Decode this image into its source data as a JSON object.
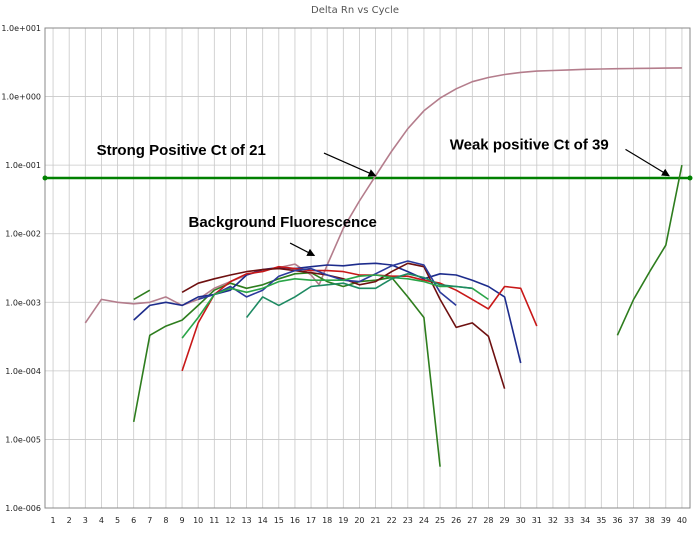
{
  "chart_data": {
    "type": "line",
    "title": "Delta Rn vs Cycle",
    "xlabel": "",
    "ylabel": "",
    "y_scale": "log",
    "ylim": [
      1e-06,
      10
    ],
    "xlim": [
      0.5,
      40.5
    ],
    "grid": true,
    "legend": "none",
    "x_ticks": [
      1,
      2,
      3,
      4,
      5,
      6,
      7,
      8,
      9,
      10,
      11,
      12,
      13,
      14,
      15,
      16,
      17,
      18,
      19,
      20,
      21,
      22,
      23,
      24,
      25,
      26,
      27,
      28,
      29,
      30,
      31,
      32,
      33,
      34,
      35,
      36,
      37,
      38,
      39,
      40
    ],
    "y_ticks": [
      {
        "value": 10,
        "label": "1.0e+001"
      },
      {
        "value": 1,
        "label": "1.0e+000"
      },
      {
        "value": 0.1,
        "label": "1.0e-001"
      },
      {
        "value": 0.01,
        "label": "1.0e-002"
      },
      {
        "value": 0.001,
        "label": "1.0e-003"
      },
      {
        "value": 0.0001,
        "label": "1.0e-004"
      },
      {
        "value": 1e-05,
        "label": "1.0e-005"
      },
      {
        "value": 1e-06,
        "label": "1.0e-006"
      }
    ],
    "threshold": {
      "value": 0.065,
      "color": "#008000"
    },
    "annotations": [
      {
        "text": "Strong Positive Ct of 21",
        "text_at": [
          3.7,
          0.14
        ],
        "arrow_from": [
          17.8,
          0.15
        ],
        "arrow_to": [
          21,
          0.07
        ]
      },
      {
        "text": "Weak positive Ct of 39",
        "text_at": [
          25.6,
          0.17
        ],
        "arrow_from": [
          36.5,
          0.17
        ],
        "arrow_to": [
          39.2,
          0.07
        ]
      },
      {
        "text": "Background  Fluorescence",
        "text_at": [
          9.4,
          0.0125
        ],
        "arrow_from": [
          15.7,
          0.0073
        ],
        "arrow_to": [
          17.2,
          0.0048
        ]
      }
    ],
    "series": [
      {
        "color": "#b47d8c",
        "width": 1.6,
        "x": [
          3,
          4,
          5,
          6,
          7,
          8,
          9,
          10,
          11,
          12,
          13,
          14,
          15,
          16,
          17,
          17.5,
          18,
          19,
          20,
          21,
          22,
          23,
          24,
          25,
          26,
          27,
          28,
          29,
          30,
          31,
          32,
          33,
          34,
          35,
          36,
          37,
          38,
          39,
          40
        ],
        "y": [
          0.0005,
          0.0011,
          0.001,
          0.00095,
          0.001,
          0.0012,
          0.0009,
          0.0011,
          0.0016,
          0.002,
          0.0025,
          0.0029,
          0.0032,
          0.0036,
          0.0025,
          0.0018,
          0.0035,
          0.012,
          0.03,
          0.07,
          0.16,
          0.34,
          0.62,
          0.95,
          1.3,
          1.65,
          1.9,
          2.1,
          2.25,
          2.35,
          2.4,
          2.45,
          2.5,
          2.52,
          2.55,
          2.57,
          2.58,
          2.6,
          2.62
        ]
      },
      {
        "color": "#2e7d1e",
        "width": 1.6,
        "x": [
          36,
          37,
          38,
          39,
          40
        ],
        "y": [
          0.00033,
          0.0011,
          0.0028,
          0.0068,
          0.1
        ]
      },
      {
        "color": "#2e7d1e",
        "width": 1.6,
        "x": [
          6,
          7
        ],
        "y": [
          0.0011,
          0.0015
        ]
      },
      {
        "color": "#2e7d1e",
        "width": 1.6,
        "x": [
          6,
          7,
          8,
          9,
          10,
          11,
          12,
          13,
          14,
          15,
          16,
          17,
          18,
          19,
          20,
          21,
          22,
          23,
          24,
          25
        ],
        "y": [
          1.8e-05,
          0.00033,
          0.00045,
          0.00055,
          0.0009,
          0.0015,
          0.0019,
          0.0016,
          0.0018,
          0.0022,
          0.0026,
          0.0027,
          0.002,
          0.0017,
          0.002,
          0.0021,
          0.0023,
          0.0012,
          0.0006,
          4e-06
        ]
      },
      {
        "color": "#1d2c8c",
        "width": 1.6,
        "x": [
          6,
          7,
          8,
          9,
          10,
          11,
          12,
          13,
          14,
          15,
          16,
          17,
          18,
          19,
          20,
          21,
          22,
          23,
          24,
          25,
          26,
          27,
          28,
          29,
          30
        ],
        "y": [
          0.00055,
          0.0009,
          0.001,
          0.0009,
          0.0012,
          0.0013,
          0.0015,
          0.0025,
          0.003,
          0.0032,
          0.0031,
          0.0033,
          0.0035,
          0.0034,
          0.0036,
          0.0037,
          0.0035,
          0.0028,
          0.0022,
          0.0026,
          0.0025,
          0.0021,
          0.0017,
          0.0012,
          0.00013
        ]
      },
      {
        "color": "#c81818",
        "width": 1.6,
        "x": [
          9,
          10,
          11,
          12,
          13,
          14,
          15,
          16,
          17,
          18,
          19,
          20,
          21,
          22,
          23,
          24,
          25,
          26,
          27,
          28,
          29,
          30,
          31
        ],
        "y": [
          0.0001,
          0.0005,
          0.0013,
          0.002,
          0.0026,
          0.0028,
          0.0033,
          0.0031,
          0.0029,
          0.0029,
          0.0028,
          0.0025,
          0.0025,
          0.0024,
          0.0024,
          0.0021,
          0.0019,
          0.0015,
          0.0011,
          0.0008,
          0.0017,
          0.0016,
          0.00045
        ]
      },
      {
        "color": "#6e1010",
        "width": 1.6,
        "x": [
          9,
          10,
          11,
          12,
          13,
          14,
          15,
          16,
          17,
          18,
          19,
          20,
          21,
          22,
          23,
          24,
          25,
          26,
          27,
          28,
          29
        ],
        "y": [
          0.0014,
          0.0019,
          0.0022,
          0.0025,
          0.0028,
          0.003,
          0.0031,
          0.0029,
          0.0027,
          0.0025,
          0.0022,
          0.0018,
          0.002,
          0.0028,
          0.0037,
          0.0033,
          0.0011,
          0.00043,
          0.0005,
          0.00032,
          5.5e-05
        ]
      },
      {
        "color": "#2b3a9c",
        "width": 1.6,
        "x": [
          10,
          11,
          12,
          13,
          14,
          15,
          16,
          17,
          18,
          19,
          20,
          21,
          22,
          23,
          24,
          25,
          26
        ],
        "y": [
          0.0011,
          0.0013,
          0.0017,
          0.0012,
          0.0015,
          0.0024,
          0.0029,
          0.0031,
          0.0025,
          0.0021,
          0.002,
          0.0026,
          0.0034,
          0.004,
          0.0035,
          0.0014,
          0.0009
        ]
      },
      {
        "color": "#2aa548",
        "width": 1.6,
        "x": [
          9,
          10,
          11,
          12,
          13,
          14,
          15,
          16,
          17,
          18,
          19,
          20,
          21,
          22,
          23,
          24,
          25,
          26,
          27,
          28
        ],
        "y": [
          0.0003,
          0.0006,
          0.0013,
          0.0016,
          0.0014,
          0.0016,
          0.002,
          0.0022,
          0.0021,
          0.0021,
          0.0021,
          0.0024,
          0.0025,
          0.0023,
          0.0022,
          0.002,
          0.0017,
          0.0017,
          0.0016,
          0.0011
        ]
      },
      {
        "color": "#1e8a62",
        "width": 1.6,
        "x": [
          13,
          14,
          15,
          16,
          17,
          18,
          19,
          20,
          21,
          22,
          23,
          24,
          25,
          26,
          27
        ],
        "y": [
          0.0006,
          0.0012,
          0.0009,
          0.0012,
          0.0017,
          0.0018,
          0.0019,
          0.0016,
          0.0016,
          0.0022,
          0.0026,
          0.0023,
          0.0018,
          0.0017,
          0.0016
        ]
      }
    ]
  }
}
